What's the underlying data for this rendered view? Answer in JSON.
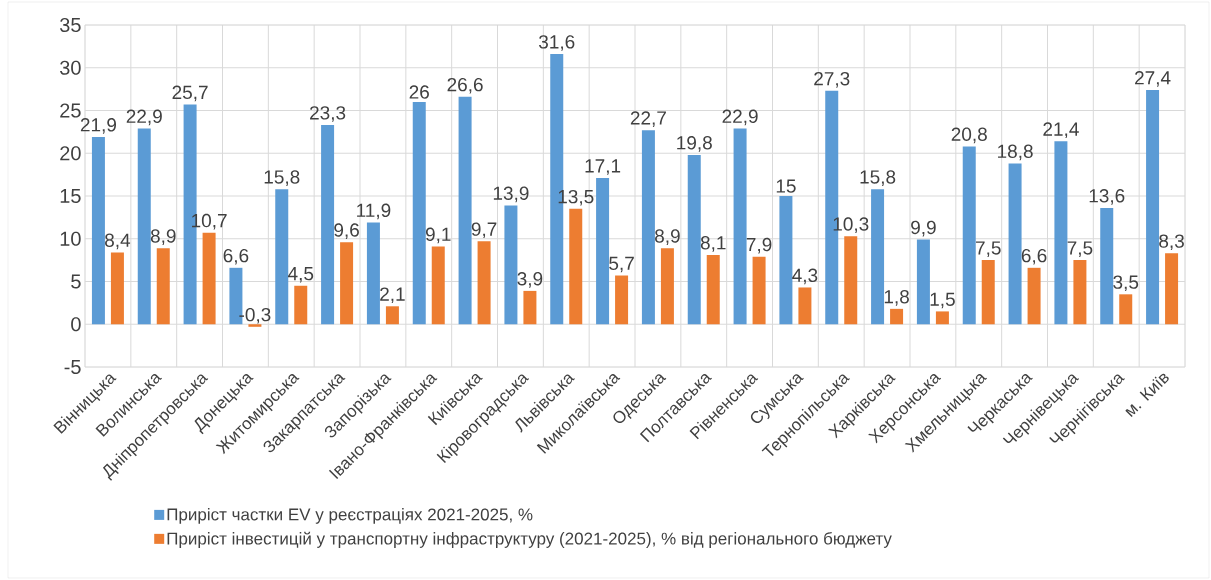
{
  "chart_data": {
    "type": "bar",
    "categories": [
      "Вінницька",
      "Волинська",
      "Дніпропетровська",
      "Донецька",
      "Житомирська",
      "Закарпатська",
      "Запорізька",
      "Івано-Франківська",
      "Київська",
      "Кіровоградська",
      "Львівська",
      "Миколаївська",
      "Одеська",
      "Полтавська",
      "Рівненська",
      "Сумська",
      "Тернопільська",
      "Харківська",
      "Херсонська",
      "Хмельницька",
      "Черкаська",
      "Чернівецька",
      "Чернігівська",
      "м. Київ"
    ],
    "series": [
      {
        "name": "Приріст частки EV у реєстраціях 2021-2025, %",
        "color": "#5b9bd5",
        "values": [
          21.9,
          22.9,
          25.7,
          6.6,
          15.8,
          23.3,
          11.9,
          26,
          26.6,
          13.9,
          31.6,
          17.1,
          22.7,
          19.8,
          22.9,
          15,
          27.3,
          15.8,
          9.9,
          20.8,
          18.8,
          21.4,
          13.6,
          27.4
        ],
        "value_labels": [
          "21,9",
          "22,9",
          "25,7",
          "6,6",
          "15,8",
          "23,3",
          "11,9",
          "26",
          "26,6",
          "13,9",
          "31,6",
          "17,1",
          "22,7",
          "19,8",
          "22,9",
          "15",
          "27,3",
          "15,8",
          "9,9",
          "20,8",
          "18,8",
          "21,4",
          "13,6",
          "27,4"
        ]
      },
      {
        "name": "Приріст інвестицій у транспортну інфраструктуру (2021-2025), % від регіонального бюджету",
        "color": "#ed7d31",
        "values": [
          8.4,
          8.9,
          10.7,
          -0.3,
          4.5,
          9.6,
          2.1,
          9.1,
          9.7,
          3.9,
          13.5,
          5.7,
          8.9,
          8.1,
          7.9,
          4.3,
          10.3,
          1.8,
          1.5,
          7.5,
          6.6,
          7.5,
          3.5,
          8.3
        ],
        "value_labels": [
          "8,4",
          "8,9",
          "10,7",
          "-0,3",
          "4,5",
          "9,6",
          "2,1",
          "9,1",
          "9,7",
          "3,9",
          "13,5",
          "5,7",
          "8,9",
          "8,1",
          "7,9",
          "4,3",
          "10,3",
          "1,8",
          "1,5",
          "7,5",
          "6,6",
          "7,5",
          "3,5",
          "8,3"
        ]
      }
    ],
    "ylim": [
      -5,
      35
    ],
    "yticks": [
      -5,
      0,
      5,
      10,
      15,
      20,
      25,
      30,
      35
    ],
    "grid": true,
    "legend": "bottom"
  }
}
